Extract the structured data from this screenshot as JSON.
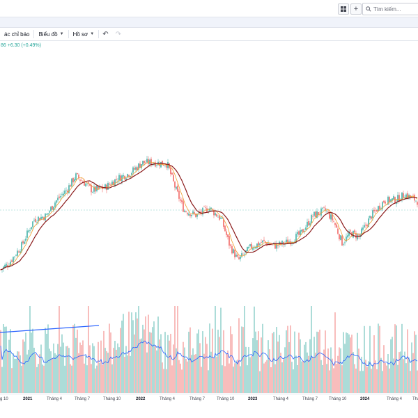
{
  "topbar": {
    "search_placeholder": "Tìm kiếm...",
    "add_label": "+"
  },
  "toolbar": {
    "indicators_label": "ác chỉ báo",
    "chart_label": "Biểu đồ",
    "profile_label": "Hồ sơ",
    "undo_icon": "undo-icon",
    "redo_icon": "redo-icon"
  },
  "legend": {
    "price_change": "86  +6.30 (+0.49%)"
  },
  "colors": {
    "up": "#26a69a",
    "down": "#ef5350",
    "ma_fast": "#f0a030",
    "ma_slow": "#8b1a1a",
    "volume_ma": "#2962ff",
    "price_line": "#26a69a"
  },
  "time_axis": [
    {
      "label": "g 10",
      "year": false
    },
    {
      "label": "2021",
      "year": true
    },
    {
      "label": "Tháng 4",
      "year": false
    },
    {
      "label": "Tháng 7",
      "year": false
    },
    {
      "label": "Tháng 10",
      "year": false
    },
    {
      "label": "2022",
      "year": true
    },
    {
      "label": "Tháng 4",
      "year": false
    },
    {
      "label": "Tháng 7",
      "year": false
    },
    {
      "label": "Tháng 10",
      "year": false
    },
    {
      "label": "2023",
      "year": true
    },
    {
      "label": "Tháng 4",
      "year": false
    },
    {
      "label": "Tháng 7",
      "year": false
    },
    {
      "label": "Tháng 10",
      "year": false
    },
    {
      "label": "2024",
      "year": true
    },
    {
      "label": "Tháng 4",
      "year": false
    },
    {
      "label": "Tháng",
      "year": false
    }
  ],
  "chart_data": {
    "type": "candlestick",
    "title": "",
    "price_path": [
      [
        0,
        0.17
      ],
      [
        0.02,
        0.22
      ],
      [
        0.05,
        0.35
      ],
      [
        0.08,
        0.55
      ],
      [
        0.11,
        0.58
      ],
      [
        0.13,
        0.68
      ],
      [
        0.16,
        0.78
      ],
      [
        0.18,
        0.88
      ],
      [
        0.2,
        0.83
      ],
      [
        0.22,
        0.77
      ],
      [
        0.25,
        0.79
      ],
      [
        0.28,
        0.86
      ],
      [
        0.31,
        0.9
      ],
      [
        0.34,
        0.98
      ],
      [
        0.37,
        0.98
      ],
      [
        0.4,
        0.97
      ],
      [
        0.42,
        0.78
      ],
      [
        0.44,
        0.62
      ],
      [
        0.47,
        0.58
      ],
      [
        0.5,
        0.64
      ],
      [
        0.53,
        0.55
      ],
      [
        0.55,
        0.35
      ],
      [
        0.57,
        0.24
      ],
      [
        0.6,
        0.34
      ],
      [
        0.63,
        0.38
      ],
      [
        0.66,
        0.35
      ],
      [
        0.69,
        0.38
      ],
      [
        0.72,
        0.44
      ],
      [
        0.75,
        0.58
      ],
      [
        0.78,
        0.62
      ],
      [
        0.8,
        0.53
      ],
      [
        0.82,
        0.37
      ],
      [
        0.84,
        0.45
      ],
      [
        0.86,
        0.42
      ],
      [
        0.89,
        0.58
      ],
      [
        0.92,
        0.69
      ],
      [
        0.95,
        0.7
      ],
      [
        0.97,
        0.74
      ],
      [
        1.0,
        0.69
      ]
    ],
    "volume_overlay": "moving-average"
  }
}
